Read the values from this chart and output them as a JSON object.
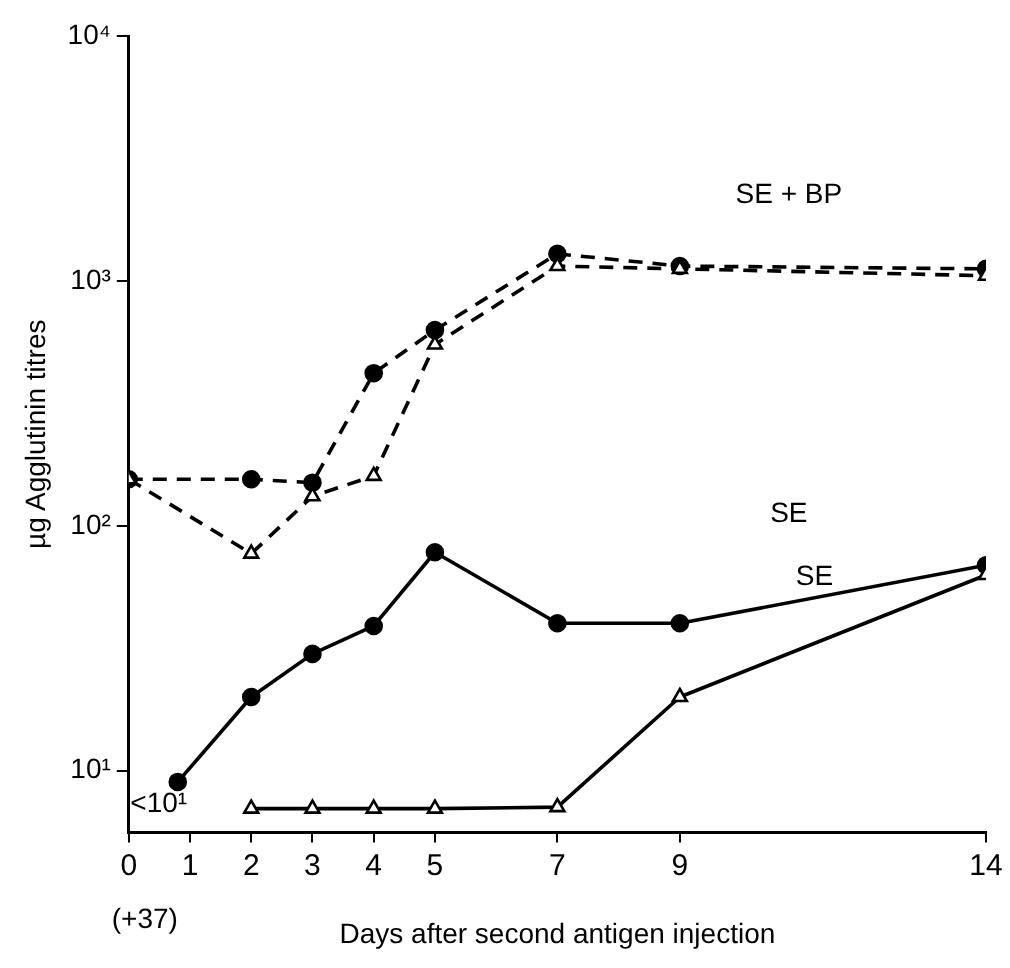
{
  "chart_data": {
    "type": "line",
    "xlabel": "Days after second antigen injection",
    "ylabel": "µg Agglutinin titres",
    "log": "y",
    "grid": false,
    "legend": false,
    "xlim": [
      0,
      14
    ],
    "xticks": [
      0,
      1,
      2,
      3,
      4,
      5,
      7,
      9,
      14
    ],
    "ylim": [
      5.6,
      10000
    ],
    "yticks": [
      {
        "value": 10,
        "label": "10¹"
      },
      {
        "value": 100,
        "label": "10²"
      },
      {
        "value": 1000,
        "label": "10³"
      },
      {
        "value": 10000,
        "label": "10⁴"
      }
    ],
    "series": [
      {
        "color": "#000000",
        "marker": "circle",
        "line_style": "dashed",
        "x": [
          0,
          2,
          3,
          4,
          5,
          7,
          9,
          14
        ],
        "values": [
          155,
          155,
          150,
          420,
          630,
          1290,
          1150,
          1120
        ]
      },
      {
        "color": "#000000",
        "marker": "triangle",
        "line_style": "dashed",
        "x": [
          0,
          2,
          3,
          4,
          5,
          7,
          9,
          14
        ],
        "values": [
          155,
          77,
          132,
          160,
          550,
          1150,
          1120,
          1050
        ]
      },
      {
        "color": "#000000",
        "marker": "circle",
        "line_style": "solid",
        "x": [
          0.8,
          2,
          3,
          4,
          5,
          7,
          9,
          14
        ],
        "values": [
          9,
          20,
          30,
          39,
          78,
          40,
          40,
          69
        ]
      },
      {
        "color": "#000000",
        "marker": "triangle",
        "line_style": "solid",
        "x": [
          2,
          3,
          4,
          5,
          7,
          9,
          14
        ],
        "values": [
          7,
          7,
          7,
          7,
          7.1,
          20,
          63
        ]
      }
    ],
    "annotations": [
      "(+37)",
      "SE + BP",
      "SE",
      "SE",
      "<10¹"
    ]
  }
}
